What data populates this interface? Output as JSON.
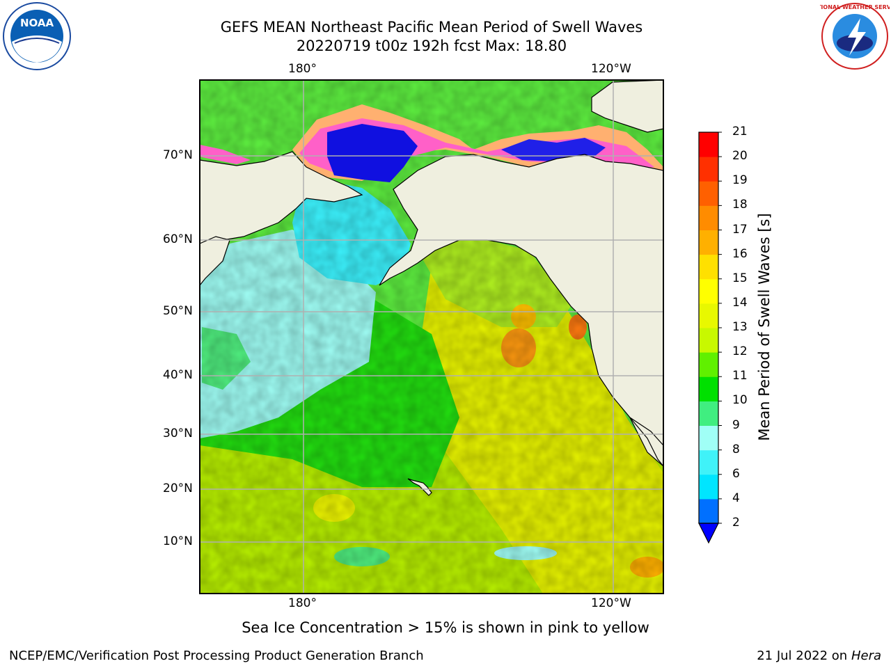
{
  "title_line1": "GEFS MEAN Northeast Pacific Mean Period of Swell Waves",
  "title_line2": "20220719 t00z 192h fcst   Max: 18.80",
  "logos": {
    "left": {
      "name": "noaa-logo",
      "text": "NOAA"
    },
    "right": {
      "name": "nws-logo",
      "text": "NATIONAL WEATHER SERVICE"
    }
  },
  "map": {
    "lon_labels_top": [
      "180°",
      "120°W"
    ],
    "lon_labels_bottom": [
      "180°",
      "120°W"
    ],
    "lat_labels": [
      "70°N",
      "60°N",
      "50°N",
      "40°N",
      "30°N",
      "20°N",
      "10°N"
    ],
    "land_color": "#efefdf",
    "gridline_color": "#b0b0b0"
  },
  "colorbar": {
    "title": "Mean Period of Swell Waves [s]",
    "ticks": [
      "2",
      "4",
      "6",
      "8",
      "9",
      "10",
      "11",
      "12",
      "13",
      "14",
      "15",
      "16",
      "17",
      "18",
      "19",
      "20",
      "21"
    ],
    "colors": [
      "#0070ff",
      "#00e5ff",
      "#40f2f8",
      "#a0fff6",
      "#40ee80",
      "#00e000",
      "#60f000",
      "#c8f800",
      "#e8f800",
      "#ffff00",
      "#ffe000",
      "#ffb000",
      "#ff8c00",
      "#ff6000",
      "#ff3000",
      "#ff0000"
    ],
    "under_color": "#0000ff"
  },
  "caption": "Sea Ice Concentration > 15% is shown in pink to yellow",
  "footer_left": "NCEP/EMC/Verification Post Processing Product Generation Branch",
  "footer_right_date": "21 Jul 2022 on",
  "footer_right_host": "Hera"
}
